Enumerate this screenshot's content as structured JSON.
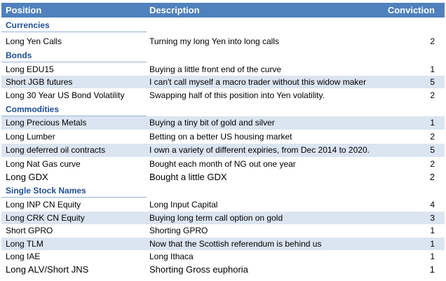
{
  "header": {
    "position": "Position",
    "description": "Description",
    "conviction": "Conviction"
  },
  "sections": [
    {
      "name": "Currencies",
      "rows": [
        {
          "position": "Long Yen Calls",
          "description": "Turning my long Yen into long calls",
          "conviction": "2"
        }
      ]
    },
    {
      "name": "Bonds",
      "rows": [
        {
          "position": "Long EDU15",
          "description": "Buying a little front end of the curve",
          "conviction": "1"
        },
        {
          "position": "Short JGB futures",
          "description": "I can't call myself a macro trader without this widow maker",
          "conviction": "5"
        },
        {
          "position": "Long 30 Year US Bond Volatility",
          "description": "Swapping half of this position into Yen volatility.",
          "conviction": "2"
        }
      ]
    },
    {
      "name": "Commodities",
      "rows": [
        {
          "position": "Long Precious Metals",
          "description": "Buying a tiny bit of gold and silver",
          "conviction": "1"
        },
        {
          "position": "Long Lumber",
          "description": "Betting on a better US housing market",
          "conviction": "2"
        },
        {
          "position": "Long deferred oil contracts",
          "description": "I own a variety of different expiries, from Dec 2014 to 2020.",
          "conviction": "5"
        },
        {
          "position": "Long Nat Gas curve",
          "description": "Bought each month of NG out one year",
          "conviction": "2"
        },
        {
          "position": "Long GDX",
          "description": "Bought a little GDX",
          "conviction": "2"
        }
      ]
    },
    {
      "name": "Single Stock Names",
      "rows": [
        {
          "position": "Long INP CN Equity",
          "description": "Long Input Capital",
          "conviction": "4"
        },
        {
          "position": "Long CRK CN Equity",
          "description": "Buying long term call option on gold",
          "conviction": "3"
        },
        {
          "position": "Short GPRO",
          "description": "Shorting GPRO",
          "conviction": "1"
        },
        {
          "position": "Long TLM",
          "description": "Now that the Scottish referendum is behind us",
          "conviction": "1"
        },
        {
          "position": "Long IAE",
          "description": "Long Ithaca",
          "conviction": "1"
        },
        {
          "position": "Long ALV/Short JNS",
          "description": "Shorting Gross euphoria",
          "conviction": "1"
        }
      ]
    }
  ]
}
